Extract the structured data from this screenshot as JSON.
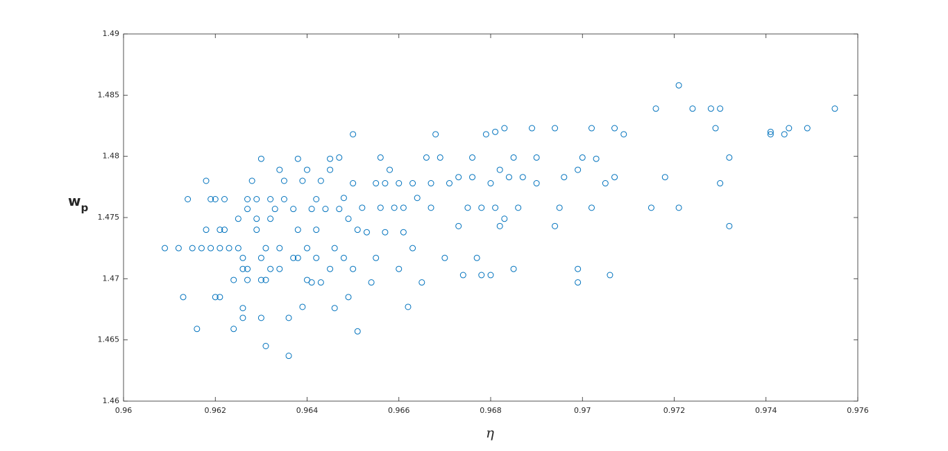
{
  "chart_data": {
    "type": "scatter",
    "xlabel": "η",
    "ylabel": "w",
    "ylabel_subscript": "p",
    "color": "#0072bd",
    "xlim": [
      0.96,
      0.976
    ],
    "xticks": [
      0.96,
      0.962,
      0.964,
      0.966,
      0.968,
      0.97,
      0.972,
      0.974,
      0.976
    ],
    "ylim": [
      1.46,
      1.49
    ],
    "yticks": [
      1.46,
      1.465,
      1.47,
      1.475,
      1.48,
      1.485,
      1.49
    ],
    "x": [
      0.9609,
      0.9612,
      0.9613,
      0.9614,
      0.9615,
      0.9616,
      0.9617,
      0.9618,
      0.9618,
      0.9619,
      0.9619,
      0.962,
      0.962,
      0.9621,
      0.9621,
      0.9621,
      0.9622,
      0.9622,
      0.9623,
      0.9624,
      0.9624,
      0.9625,
      0.9625,
      0.9626,
      0.9626,
      0.9626,
      0.9627,
      0.9627,
      0.9627,
      0.9627,
      0.9626,
      0.9628,
      0.9629,
      0.9629,
      0.9629,
      0.963,
      0.963,
      0.963,
      0.963,
      0.9631,
      0.9631,
      0.9631,
      0.9632,
      0.9632,
      0.9632,
      0.9633,
      0.9634,
      0.9634,
      0.9634,
      0.9635,
      0.9635,
      0.9636,
      0.9636,
      0.9637,
      0.9637,
      0.9638,
      0.9638,
      0.9638,
      0.9639,
      0.9639,
      0.964,
      0.964,
      0.964,
      0.9641,
      0.9641,
      0.9642,
      0.9642,
      0.9642,
      0.9643,
      0.9643,
      0.9644,
      0.9645,
      0.9645,
      0.9645,
      0.9646,
      0.9646,
      0.9647,
      0.9647,
      0.9648,
      0.9648,
      0.9649,
      0.9649,
      0.965,
      0.965,
      0.965,
      0.9651,
      0.9651,
      0.9652,
      0.9653,
      0.9654,
      0.9655,
      0.9655,
      0.9656,
      0.9656,
      0.9657,
      0.9657,
      0.9658,
      0.9659,
      0.966,
      0.966,
      0.9661,
      0.9661,
      0.9662,
      0.9663,
      0.9663,
      0.9664,
      0.9665,
      0.9666,
      0.9667,
      0.9667,
      0.9668,
      0.9669,
      0.967,
      0.9671,
      0.9673,
      0.9673,
      0.9674,
      0.9675,
      0.9676,
      0.9676,
      0.9677,
      0.9678,
      0.9678,
      0.9679,
      0.968,
      0.968,
      0.9681,
      0.9681,
      0.9682,
      0.9682,
      0.9683,
      0.9683,
      0.9684,
      0.9685,
      0.9685,
      0.9686,
      0.9687,
      0.9689,
      0.969,
      0.969,
      0.9694,
      0.9694,
      0.9695,
      0.9696,
      0.9699,
      0.9699,
      0.9699,
      0.97,
      0.9702,
      0.9702,
      0.9703,
      0.9705,
      0.9706,
      0.9707,
      0.9707,
      0.9709,
      0.9715,
      0.9716,
      0.9718,
      0.9721,
      0.9721,
      0.9724,
      0.9728,
      0.9729,
      0.973,
      0.973,
      0.9732,
      0.9732,
      0.9741,
      0.9741,
      0.9744,
      0.9745,
      0.9749,
      0.9755
    ],
    "values": [
      1.4725,
      1.4725,
      1.4685,
      1.4765,
      1.4725,
      1.4659,
      1.4725,
      1.478,
      1.474,
      1.4765,
      1.4725,
      1.4685,
      1.4765,
      1.474,
      1.4725,
      1.4685,
      1.4765,
      1.474,
      1.4725,
      1.4659,
      1.4699,
      1.4749,
      1.4725,
      1.4676,
      1.4708,
      1.4717,
      1.4765,
      1.4757,
      1.4708,
      1.4699,
      1.4668,
      1.478,
      1.4765,
      1.4749,
      1.474,
      1.4699,
      1.4668,
      1.4717,
      1.4798,
      1.4645,
      1.4725,
      1.4699,
      1.4765,
      1.4749,
      1.4708,
      1.4757,
      1.4725,
      1.4708,
      1.4789,
      1.478,
      1.4765,
      1.4637,
      1.4668,
      1.4717,
      1.4757,
      1.474,
      1.4798,
      1.4717,
      1.478,
      1.4677,
      1.4789,
      1.4699,
      1.4725,
      1.4757,
      1.4697,
      1.474,
      1.4765,
      1.4717,
      1.4697,
      1.478,
      1.4757,
      1.4789,
      1.4708,
      1.4798,
      1.4725,
      1.4676,
      1.4757,
      1.4799,
      1.4766,
      1.4717,
      1.4685,
      1.4749,
      1.4778,
      1.4708,
      1.4818,
      1.474,
      1.4657,
      1.4758,
      1.4738,
      1.4697,
      1.4778,
      1.4717,
      1.4799,
      1.4758,
      1.4778,
      1.4738,
      1.4789,
      1.4758,
      1.4708,
      1.4778,
      1.4758,
      1.4738,
      1.4677,
      1.4778,
      1.4725,
      1.4766,
      1.4697,
      1.4799,
      1.4778,
      1.4758,
      1.4818,
      1.4799,
      1.4717,
      1.4778,
      1.4783,
      1.4743,
      1.4703,
      1.4758,
      1.4799,
      1.4783,
      1.4717,
      1.4758,
      1.4703,
      1.4818,
      1.4778,
      1.4703,
      1.4758,
      1.482,
      1.4743,
      1.4789,
      1.4823,
      1.4749,
      1.4783,
      1.4799,
      1.4708,
      1.4758,
      1.4783,
      1.4823,
      1.4799,
      1.4778,
      1.4823,
      1.4743,
      1.4758,
      1.4783,
      1.4789,
      1.4708,
      1.4697,
      1.4799,
      1.4823,
      1.4758,
      1.4798,
      1.4778,
      1.4703,
      1.4783,
      1.4823,
      1.4818,
      1.4758,
      1.4839,
      1.4783,
      1.4858,
      1.4758,
      1.4839,
      1.4839,
      1.4823,
      1.4778,
      1.4839,
      1.4799,
      1.4743,
      1.4818,
      1.482,
      1.4818,
      1.4823,
      1.4823,
      1.4839
    ]
  }
}
